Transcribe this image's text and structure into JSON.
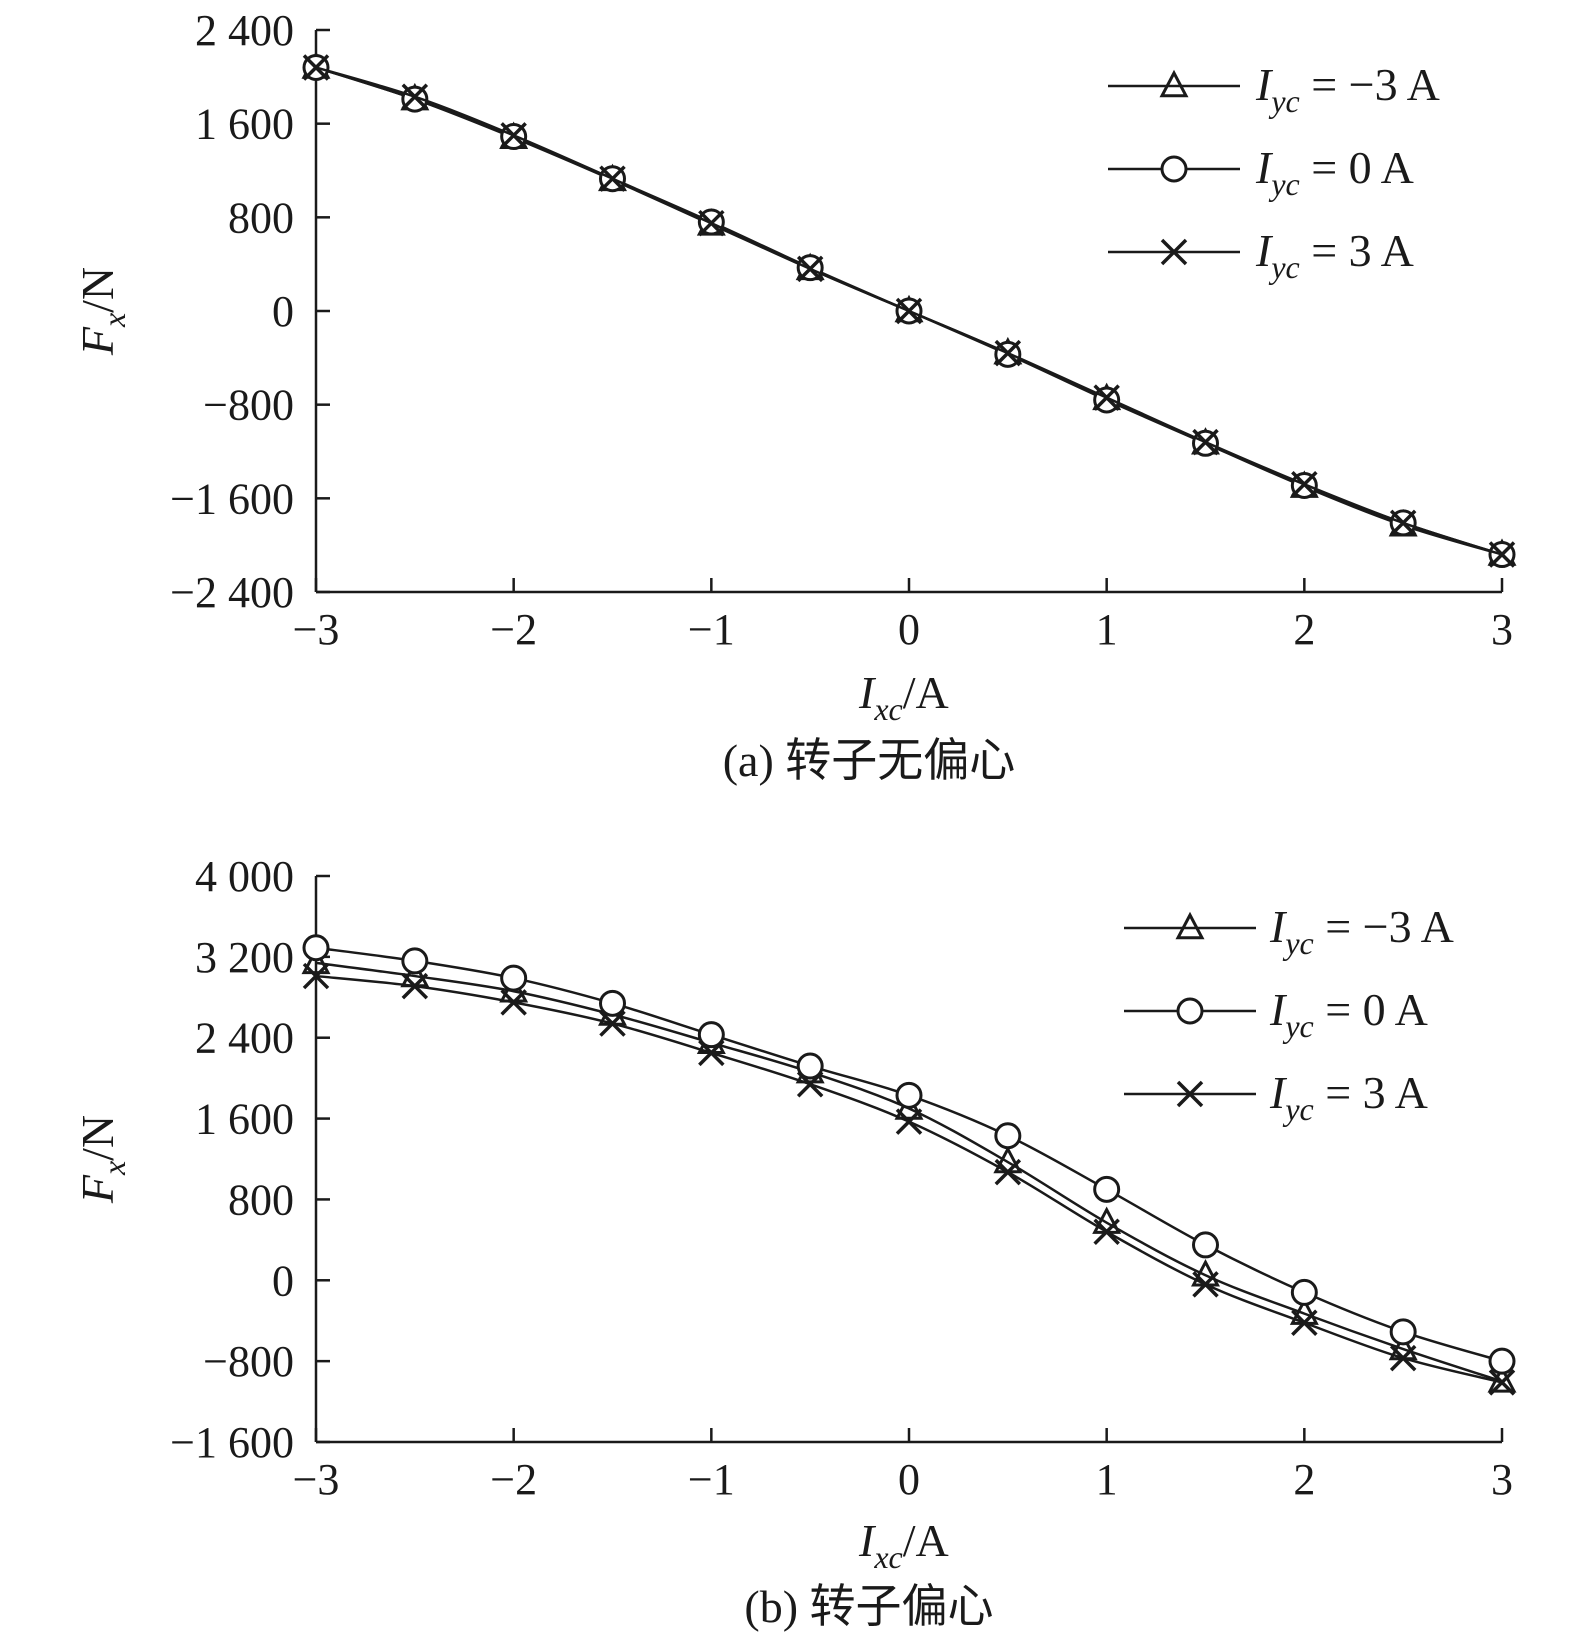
{
  "chart_data": [
    {
      "type": "line",
      "caption": "(a) 转子无偏心",
      "ylabel": {
        "var": "F",
        "sub": "x",
        "unit": "/N"
      },
      "xlabel": {
        "var": "I",
        "sub": "xc",
        "unit": "/A"
      },
      "xlim": [
        -3,
        3
      ],
      "ylim": [
        -2400,
        2400
      ],
      "xticks": [
        -3,
        -2,
        -1,
        0,
        1,
        2,
        3
      ],
      "xtick_labels": [
        "−3",
        "−2",
        "−1",
        "0",
        "1",
        "2",
        "3"
      ],
      "yticks": [
        -2400,
        -1600,
        -800,
        0,
        800,
        1600,
        2400
      ],
      "ytick_labels": [
        "−2 400",
        "−1 600",
        "−800",
        "0",
        "800",
        "1 600",
        "2 400"
      ],
      "legend_position": "top-right",
      "x": [
        -3,
        -2.5,
        -2,
        -1.5,
        -1,
        -0.5,
        0,
        0.5,
        1,
        1.5,
        2,
        2.5,
        3
      ],
      "series": [
        {
          "name": "I_yc = −3 A",
          "label": {
            "var": "I",
            "sub": "yc",
            "rest": " = −3 A"
          },
          "marker": "triangle",
          "values": [
            2080,
            1810,
            1480,
            1120,
            740,
            360,
            0,
            -360,
            -750,
            -1130,
            -1500,
            -1830,
            -2080
          ]
        },
        {
          "name": "I_yc = 0 A",
          "label": {
            "var": "I",
            "sub": "yc",
            "rest": " = 0 A"
          },
          "marker": "circle",
          "values": [
            2080,
            1810,
            1490,
            1130,
            760,
            370,
            0,
            -370,
            -760,
            -1130,
            -1490,
            -1810,
            -2080
          ]
        },
        {
          "name": "I_yc = 3 A",
          "label": {
            "var": "I",
            "sub": "yc",
            "rest": " = 3 A"
          },
          "marker": "cross",
          "values": [
            2080,
            1830,
            1500,
            1130,
            750,
            360,
            0,
            -360,
            -740,
            -1120,
            -1480,
            -1810,
            -2080
          ]
        }
      ]
    },
    {
      "type": "line",
      "caption": "(b) 转子偏心",
      "ylabel": {
        "var": "F",
        "sub": "x",
        "unit": "/N"
      },
      "xlabel": {
        "var": "I",
        "sub": "xc",
        "unit": "/A"
      },
      "xlim": [
        -3,
        3
      ],
      "ylim": [
        -1600,
        4000
      ],
      "xticks": [
        -3,
        -2,
        -1,
        0,
        1,
        2,
        3
      ],
      "xtick_labels": [
        "−3",
        "−2",
        "−1",
        "0",
        "1",
        "2",
        "3"
      ],
      "yticks": [
        -1600,
        -800,
        0,
        800,
        1600,
        2400,
        3200,
        4000
      ],
      "ytick_labels": [
        "−1 600",
        "−800",
        "0",
        "800",
        "1 600",
        "2 400",
        "3 200",
        "4 000"
      ],
      "legend_position": "top-right",
      "x": [
        -3,
        -2.5,
        -2,
        -1.5,
        -1,
        -0.5,
        0,
        0.5,
        1,
        1.5,
        2,
        2.5,
        3
      ],
      "series": [
        {
          "name": "I_yc = −3 A",
          "label": {
            "var": "I",
            "sub": "yc",
            "rest": " = −3 A"
          },
          "marker": "triangle",
          "values": [
            3140,
            3010,
            2860,
            2630,
            2350,
            2060,
            1700,
            1170,
            570,
            50,
            -330,
            -680,
            -1000
          ]
        },
        {
          "name": "I_yc = 0 A",
          "label": {
            "var": "I",
            "sub": "yc",
            "rest": " = 0 A"
          },
          "marker": "circle",
          "values": [
            3290,
            3160,
            2990,
            2740,
            2430,
            2120,
            1830,
            1430,
            900,
            350,
            -120,
            -510,
            -800
          ]
        },
        {
          "name": "I_yc = 3 A",
          "label": {
            "var": "I",
            "sub": "yc",
            "rest": " = 3 A"
          },
          "marker": "cross",
          "values": [
            3010,
            2910,
            2750,
            2540,
            2250,
            1940,
            1570,
            1070,
            480,
            -40,
            -420,
            -770,
            -1010
          ]
        }
      ]
    }
  ]
}
